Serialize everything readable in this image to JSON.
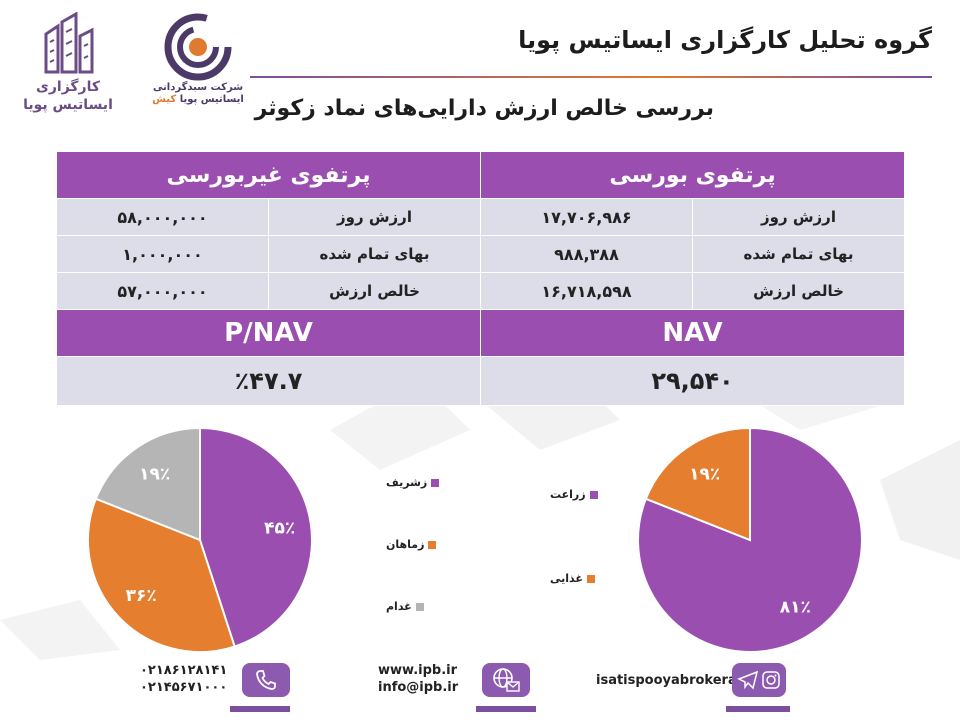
{
  "header": {
    "title": "گروه تحلیل کارگزاری ایساتیس پویا",
    "subtitle": "بررسی خالص ارزش دارایی‌های نماد زکوثر"
  },
  "logos": {
    "brokerage": {
      "line1": "کارگزاری",
      "line2": "ایساتیس پویا"
    },
    "investment": {
      "line1": "شرکت سبدگردانی",
      "line2a": "ایساتیس پویا",
      "line2b": "کیش"
    }
  },
  "table": {
    "bourse": {
      "header": "پرتفوی بورسی",
      "rows": [
        {
          "label": "ارزش روز",
          "value": "۱۷,۷۰۶,۹۸۶"
        },
        {
          "label": "بهای تمام شده",
          "value": "۹۸۸,۳۸۸"
        },
        {
          "label": "خالص ارزش",
          "value": "۱۶,۷۱۸,۵۹۸"
        }
      ],
      "metric_label": "NAV",
      "metric_value": "۲۹,۵۴۰"
    },
    "nonbourse": {
      "header": "پرتفوی غیربورسی",
      "rows": [
        {
          "label": "ارزش روز",
          "value": "۵۸,۰۰۰,۰۰۰"
        },
        {
          "label": "بهای تمام شده",
          "value": "۱,۰۰۰,۰۰۰"
        },
        {
          "label": "خالص ارزش",
          "value": "۵۷,۰۰۰,۰۰۰"
        }
      ],
      "metric_label": "P/NAV",
      "metric_value": "٪۴۷.۷"
    }
  },
  "chart_data": [
    {
      "type": "pie",
      "categories": [
        "زشریف",
        "زماهان",
        "غدام"
      ],
      "values": [
        45,
        36,
        19
      ],
      "labels": [
        "۴۵٪",
        "۳۶٪",
        "۱۹٪"
      ],
      "colors": [
        "#9a4fb0",
        "#e57e2e",
        "#b5b5b5"
      ],
      "legend": "right"
    },
    {
      "type": "pie",
      "categories": [
        "زراعت",
        "غذایی"
      ],
      "values": [
        81,
        19
      ],
      "labels": [
        "۸۱٪",
        "۱۹٪"
      ],
      "colors": [
        "#9a4fb0",
        "#e57e2e"
      ],
      "legend": "left"
    }
  ],
  "footer": {
    "phone1": "۰۲۱۸۶۱۲۸۱۴۱",
    "phone2": "۰۲۱۴۵۶۷۱۰۰۰",
    "website": "www.ipb.ir",
    "email": "info@ipb.ir",
    "social": "isatispooyabrokerage",
    "icons": [
      "phone-icon",
      "globe-mail-icon",
      "telegram-icon",
      "instagram-icon"
    ],
    "accent": "#8c5bb0"
  }
}
